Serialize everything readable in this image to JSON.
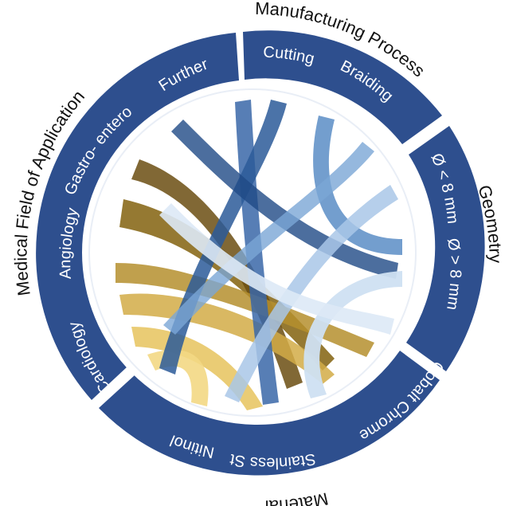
{
  "diagram": {
    "groups": [
      {
        "title": "Manufacturing Process",
        "segments": [
          "Cutting",
          "Braiding"
        ]
      },
      {
        "title": "Geometry",
        "segments": [
          "Ø < 8 mm",
          "Ø > 8 mm"
        ]
      },
      {
        "title": "Material",
        "segments": [
          "Cobalt Chrome",
          "Stainless Steel",
          "Nitinol"
        ]
      },
      {
        "title": "Medical Field of Application",
        "segments": [
          "Cardiology",
          "Angiology",
          "Gastro- enterology",
          "Further"
        ]
      }
    ],
    "colors": {
      "ring": "#2e4f8e",
      "gap": "#ffffff",
      "chord_blue_dark": "#1f4a86",
      "chord_blue_light": "#cfe0f2",
      "chord_gold_dark": "#6b4e12",
      "chord_gold_light": "#f6e2a6"
    }
  }
}
